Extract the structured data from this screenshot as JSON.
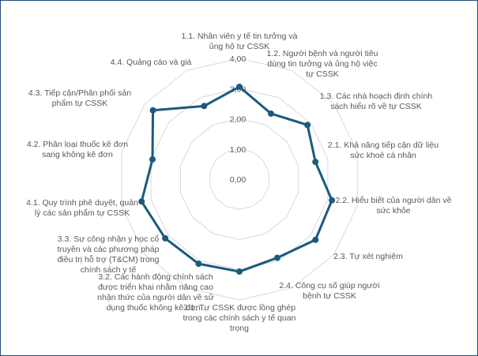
{
  "chart_data": {
    "type": "radar",
    "range": [
      0,
      4
    ],
    "ticks": [
      "0,00",
      "1,00",
      "2,00",
      "3,00",
      "4,00"
    ],
    "grid": true,
    "line_color": "#1b5a7e",
    "grid_color": "#d9d9d9",
    "categories": [
      [
        "1.1. Nhân viên y tế tin tưởng và",
        "ủng hộ tự CSSK"
      ],
      [
        "1.2. Người bệnh và người tiêu",
        "dùng tin tưởng và ủng hộ việc",
        "tự CSSK"
      ],
      [
        "1.3. Các nhà hoạch định chính",
        "sách hiểu rõ về tự CSSK"
      ],
      [
        "2.1. Khả năng tiếp cận dữ liệu",
        "sức khoẻ cá nhân"
      ],
      [
        "2.2. Hiểu biết của người dân về",
        "sức khỏe"
      ],
      [
        "2.3. Tự xét nghiệm"
      ],
      [
        "2.4. Công cụ số giúp người",
        "bệnh tự CSSK"
      ],
      [
        "3.1. Tự CSSK được lồng ghép",
        "trong các chính sách y tế quan",
        "trọng"
      ],
      [
        "3.2. Các hành động chính sách",
        "được triển khai nhằm nâng cao",
        "nhận thức của người dân về sử",
        "dụng thuốc không kê đơn.."
      ],
      [
        "3.3. Sự công nhận y học cổ",
        "truyền và các phương pháp",
        "điều trị hỗ trợ (T&CM) trong",
        "chính sách y tế"
      ],
      [
        "4.1. Quy trình phê duyệt, quản",
        "lý các sản phẩm tự CSSK"
      ],
      [
        "4.2. Phân loại thuốc kê đơn",
        "sang không kê đơn"
      ],
      [
        "4.3. Tiếp cận/Phân phối sản",
        "phẩm tự CSSK"
      ],
      [
        "4.4. Quảng cáo và giá"
      ]
    ],
    "values": [
      3.06,
      2.41,
      2.88,
      2.58,
      3.14,
      3.22,
      2.89,
      3.06,
      3.11,
      3.14,
      3.32,
      2.95,
      3.66,
      2.69
    ]
  }
}
